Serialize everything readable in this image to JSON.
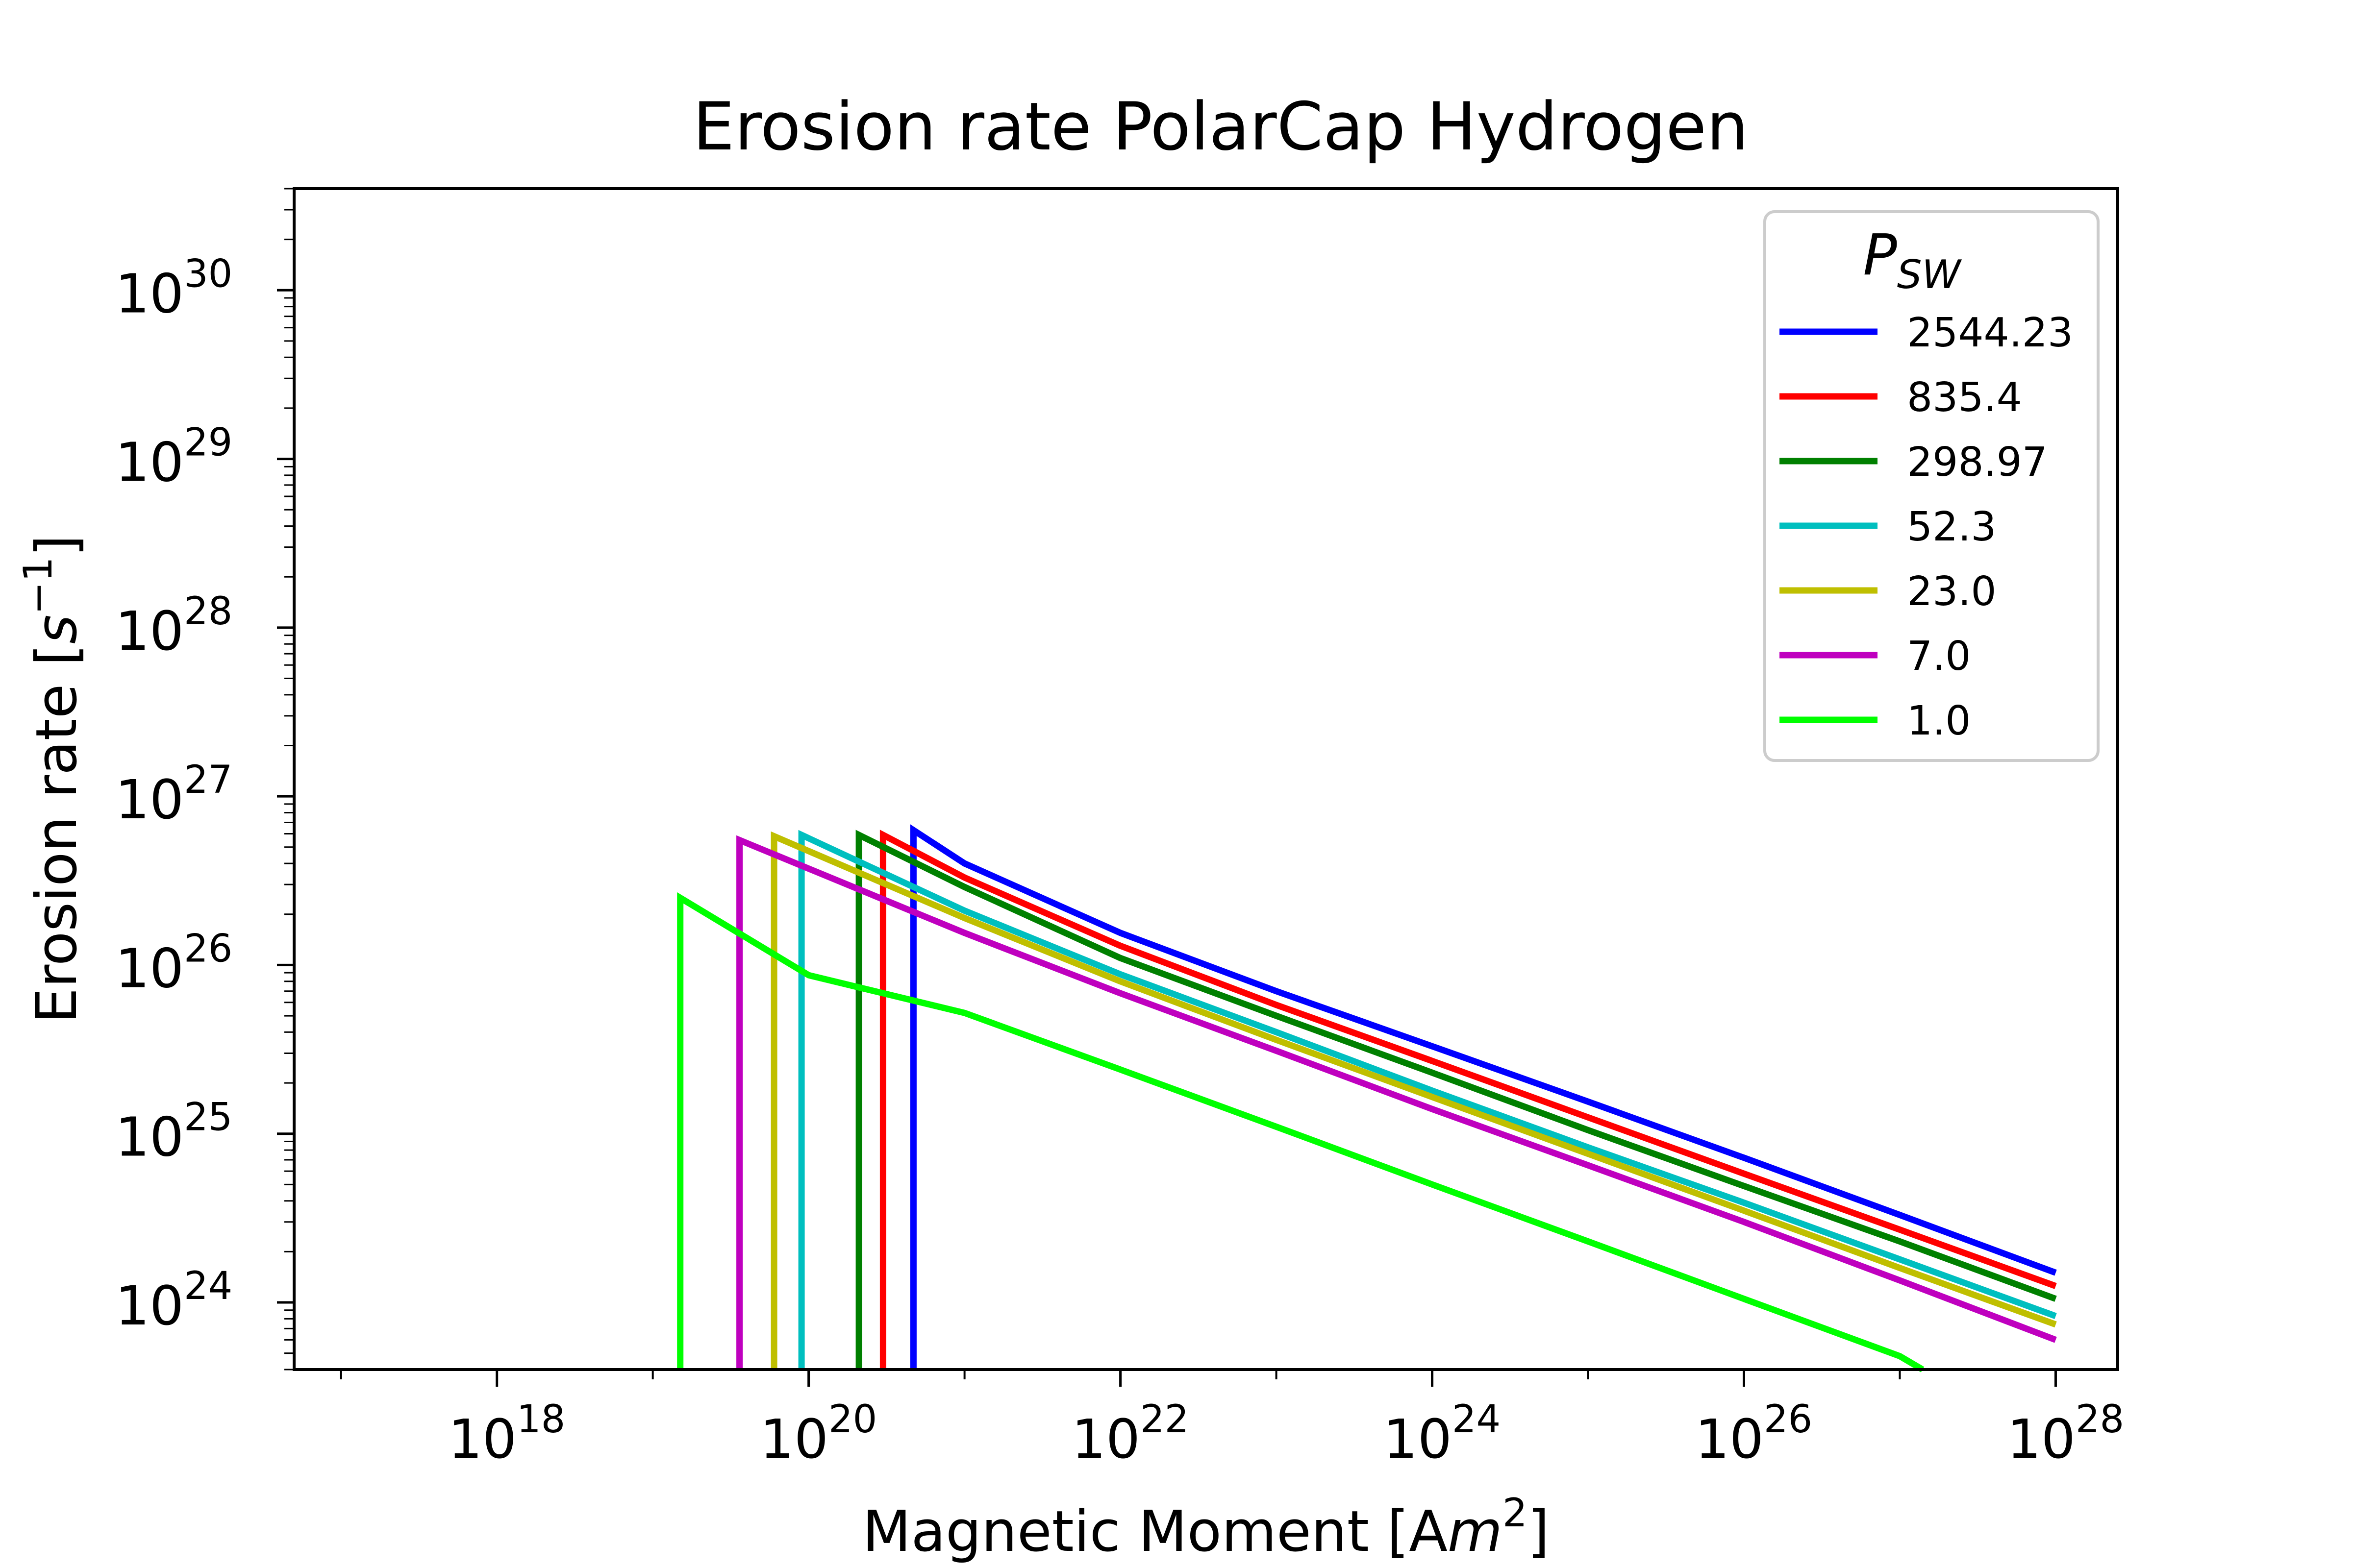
{
  "chart_data": {
    "type": "line",
    "title": "Erosion rate PolarCap Hydrogen",
    "xlabel": {
      "text": "Magnetic Moment [A",
      "italic": "m",
      "sup": "2",
      "tail": "]"
    },
    "ylabel": {
      "text": "Erosion rate [",
      "italic": "s",
      "sup": "−1",
      "tail": "]"
    },
    "xscale": "log",
    "yscale": "log",
    "xlim": [
      5e+16,
      2.5e+28
    ],
    "ylim": [
      4e+23,
      4e+30
    ],
    "xticks": [
      {
        "base": "10",
        "exp": "18",
        "value": 1e+18
      },
      {
        "base": "10",
        "exp": "20",
        "value": 1e+20
      },
      {
        "base": "10",
        "exp": "22",
        "value": 1e+22
      },
      {
        "base": "10",
        "exp": "24",
        "value": 1e+24
      },
      {
        "base": "10",
        "exp": "26",
        "value": 1e+26
      },
      {
        "base": "10",
        "exp": "28",
        "value": 1e+28
      }
    ],
    "yticks": [
      {
        "base": "10",
        "exp": "24",
        "value": 1e+24
      },
      {
        "base": "10",
        "exp": "25",
        "value": 1e+25
      },
      {
        "base": "10",
        "exp": "26",
        "value": 1e+26
      },
      {
        "base": "10",
        "exp": "27",
        "value": 1e+27
      },
      {
        "base": "10",
        "exp": "28",
        "value": 1e+28
      },
      {
        "base": "10",
        "exp": "29",
        "value": 1e+29
      },
      {
        "base": "10",
        "exp": "30",
        "value": 1e+30
      }
    ],
    "grid": false,
    "legend": {
      "title_main": "P",
      "title_sub": "SW",
      "placement": "top-right"
    },
    "series": [
      {
        "name": "2544.23",
        "color": "#0000ff",
        "x": [
          4.7e+20,
          4.7e+20,
          1e+21,
          1e+22,
          1e+23,
          1e+24,
          1e+25,
          1e+26,
          1e+27,
          1e+28
        ],
        "y": [
          4e+23,
          6.3e+26,
          4e+26,
          1.55e+26,
          7e+25,
          3.3e+25,
          1.55e+25,
          7.2e+24,
          3.3e+24,
          1.5e+24
        ]
      },
      {
        "name": "835.4",
        "color": "#ff0000",
        "x": [
          3e+20,
          3e+20,
          1e+21,
          1e+22,
          1e+23,
          1e+24,
          1e+25,
          1e+26,
          1e+27,
          1e+28
        ],
        "y": [
          4e+23,
          5.9e+26,
          3.3e+26,
          1.3e+26,
          5.8e+25,
          2.7e+25,
          1.25e+25,
          5.8e+24,
          2.7e+24,
          1.25e+24
        ]
      },
      {
        "name": "298.97",
        "color": "#008000",
        "x": [
          2.1e+20,
          2.1e+20,
          1e+21,
          1e+22,
          1e+23,
          1e+24,
          1e+25,
          1e+26,
          1e+27,
          1e+28
        ],
        "y": [
          4e+23,
          5.9e+26,
          2.9e+26,
          1.1e+26,
          5e+25,
          2.3e+25,
          1.05e+25,
          4.9e+24,
          2.3e+24,
          1.05e+24
        ]
      },
      {
        "name": "52.3",
        "color": "#00bfbf",
        "x": [
          9e+19,
          9e+19,
          1e+21,
          1e+22,
          1e+23,
          1e+24,
          1e+25,
          1e+26,
          1e+27,
          1e+28
        ],
        "y": [
          4e+23,
          5.9e+26,
          2.1e+26,
          8.8e+25,
          4e+25,
          1.8e+25,
          8.3e+24,
          3.9e+24,
          1.8e+24,
          8.3e+23
        ]
      },
      {
        "name": "23.0",
        "color": "#bfbf00",
        "x": [
          6e+19,
          6e+19,
          1e+21,
          1e+22,
          1e+23,
          1e+24,
          1e+25,
          1e+26,
          1e+27,
          1e+28
        ],
        "y": [
          4e+23,
          5.8e+26,
          1.9e+26,
          8e+25,
          3.6e+25,
          1.65e+25,
          7.6e+24,
          3.5e+24,
          1.6e+24,
          7.4e+23
        ]
      },
      {
        "name": "7.0",
        "color": "#bf00bf",
        "x": [
          3.6e+19,
          3.6e+19,
          1e+21,
          1e+22,
          1e+23,
          1e+24,
          1e+25,
          1e+26,
          1e+27,
          1e+28
        ],
        "y": [
          4e+23,
          5.5e+26,
          1.55e+26,
          6.8e+25,
          3.1e+25,
          1.4e+25,
          6.5e+24,
          3e+24,
          1.35e+24,
          6e+23
        ]
      },
      {
        "name": "1.0",
        "color": "#00ff00",
        "x": [
          1.5e+19,
          1.5e+19,
          1e+20,
          1e+21,
          1e+22,
          1e+23,
          1e+24,
          1e+25,
          1e+26,
          1e+27,
          1.4e+27
        ],
        "y": [
          4e+23,
          2.5e+26,
          8.7e+25,
          5.2e+25,
          2.4e+25,
          1.1e+25,
          5e+24,
          2.3e+24,
          1.05e+24,
          4.8e+23,
          4e+23
        ]
      }
    ]
  }
}
